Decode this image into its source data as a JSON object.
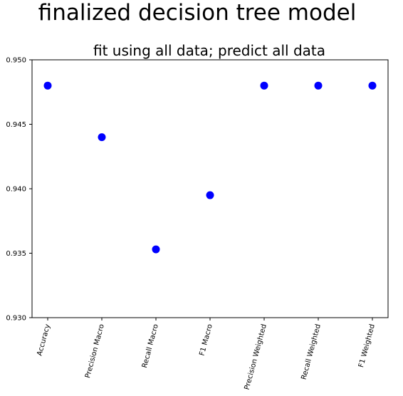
{
  "figure": {
    "suptitle": "finalized decision tree model"
  },
  "chart_data": {
    "type": "scatter",
    "title": "fit using all data; predict all data",
    "xlabel": "",
    "ylabel": "",
    "categories": [
      "Accuracy",
      "Precision Macro",
      "Recall Macro",
      "F1 Macro",
      "Precision Weighted",
      "Recall Weighted",
      "F1 Weighted"
    ],
    "values": [
      0.948,
      0.944,
      0.9353,
      0.9395,
      0.948,
      0.948,
      0.948
    ],
    "ylim": [
      0.93,
      0.95
    ],
    "yticks": [
      "0.930",
      "0.935",
      "0.940",
      "0.945",
      "0.950"
    ],
    "x_tick_rotation": "rotated labels",
    "grid": false,
    "marker_color": "#0000ff",
    "legend": "none"
  }
}
